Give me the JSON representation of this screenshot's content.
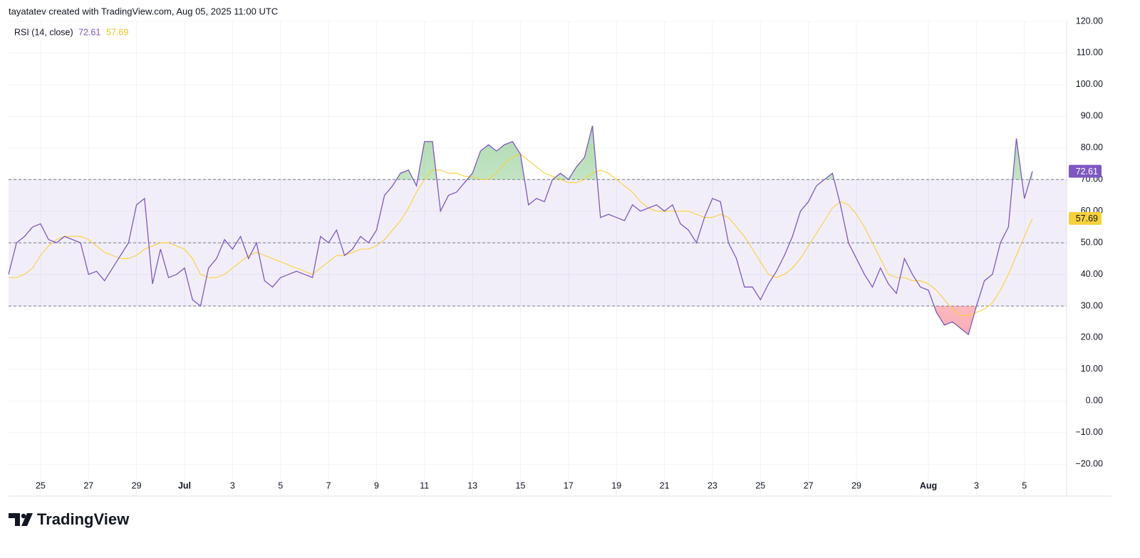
{
  "header": "tayatatev created with TradingView.com, Aug 05, 2025 11:00 UTC",
  "logo": "TradingView",
  "chart_data": {
    "type": "line",
    "indicator": "RSI (14, close)",
    "categories": [
      null,
      null,
      null,
      null,
      "25",
      null,
      null,
      null,
      null,
      null,
      "27",
      null,
      null,
      null,
      null,
      null,
      "29",
      null,
      null,
      null,
      null,
      null,
      "Jul",
      null,
      null,
      null,
      null,
      null,
      "3",
      null,
      null,
      null,
      null,
      null,
      "5",
      null,
      null,
      null,
      null,
      null,
      "7",
      null,
      null,
      null,
      null,
      null,
      "9",
      null,
      null,
      null,
      null,
      null,
      "11",
      null,
      null,
      null,
      null,
      null,
      "13",
      null,
      null,
      null,
      null,
      null,
      "15",
      null,
      null,
      null,
      null,
      null,
      "17",
      null,
      null,
      null,
      null,
      null,
      "19",
      null,
      null,
      null,
      null,
      null,
      "21",
      null,
      null,
      null,
      null,
      null,
      "23",
      null,
      null,
      null,
      null,
      null,
      "25",
      null,
      null,
      null,
      null,
      null,
      "27",
      null,
      null,
      null,
      null,
      null,
      "29",
      null,
      null,
      null,
      null,
      null,
      null,
      null,
      null,
      "Aug",
      null,
      null,
      null,
      null,
      null,
      "3",
      null,
      null,
      null,
      null,
      null,
      "5",
      null
    ],
    "series": [
      {
        "name": "RSI (14, close)",
        "color": "#7e57c2",
        "values": [
          40,
          50,
          52,
          55,
          56,
          51,
          50,
          52,
          51,
          50,
          40,
          41,
          38,
          42,
          46,
          50,
          62,
          64,
          37,
          48,
          39,
          40,
          42,
          32,
          30,
          42,
          45,
          51,
          48,
          52,
          45,
          50,
          38,
          36,
          39,
          40,
          41,
          40,
          39,
          52,
          50,
          54,
          46,
          48,
          52,
          50,
          54,
          65,
          68,
          72,
          73,
          68,
          82,
          82,
          60,
          65,
          66,
          69,
          72,
          79,
          81,
          79,
          81,
          82,
          78,
          62,
          64,
          63,
          70,
          72,
          70,
          74,
          77,
          87,
          58,
          59,
          58,
          57,
          62,
          60,
          61,
          62,
          60,
          62,
          56,
          54,
          50,
          58,
          64,
          63,
          50,
          45,
          36,
          36,
          32,
          37,
          41,
          46,
          52,
          60,
          63,
          68,
          70,
          72,
          62,
          50,
          45,
          40,
          36,
          42,
          37,
          34,
          45,
          40,
          36,
          35,
          28,
          24,
          25,
          23,
          21,
          30,
          38,
          40,
          50,
          55,
          83,
          64,
          72.61
        ]
      },
      {
        "color": "#f7d13c",
        "values": [
          39,
          39,
          40,
          42,
          46,
          49,
          51,
          52,
          52,
          52,
          51,
          49,
          47,
          46,
          45,
          45,
          46,
          48,
          49,
          50,
          50,
          49,
          48,
          45,
          40,
          39,
          39,
          40,
          42,
          44,
          46,
          47,
          46,
          45,
          44,
          43,
          42,
          41,
          40,
          42,
          44,
          46,
          46,
          47,
          48,
          48,
          49,
          51,
          54,
          57,
          61,
          66,
          70,
          73,
          73,
          72,
          72,
          71,
          71,
          70,
          70,
          72,
          75,
          77,
          78,
          76,
          74,
          72,
          71,
          70,
          69,
          69,
          70,
          72,
          73,
          72,
          70,
          68,
          66,
          63,
          61,
          60,
          60,
          60,
          60,
          60,
          59,
          58,
          58,
          59,
          58,
          55,
          52,
          48,
          44,
          40,
          39,
          40,
          42,
          45,
          49,
          53,
          57,
          61,
          63,
          62,
          59,
          55,
          50,
          45,
          40,
          39,
          39,
          38,
          38,
          37,
          35,
          32,
          29,
          27,
          27,
          28,
          29,
          31,
          35,
          40,
          46,
          52,
          57.69
        ]
      }
    ],
    "bands": {
      "upper": 70,
      "middle": 50,
      "lower": 30
    },
    "ylim": [
      -24,
      120
    ],
    "yticks": [
      {
        "value": 120,
        "label": "120.00"
      },
      {
        "value": 110,
        "label": "110.00"
      },
      {
        "value": 100,
        "label": "100.00"
      },
      {
        "value": 90,
        "label": "90.00"
      },
      {
        "value": 80,
        "label": "80.00"
      },
      {
        "value": 70,
        "label": "70.00"
      },
      {
        "value": 60,
        "label": "60.00"
      },
      {
        "value": 50,
        "label": "50.00"
      },
      {
        "value": 40,
        "label": "40.00"
      },
      {
        "value": 30,
        "label": "30.00"
      },
      {
        "value": 20,
        "label": "20.00"
      },
      {
        "value": 10,
        "label": "10.00"
      },
      {
        "value": 0,
        "label": "0.00"
      },
      {
        "value": -10,
        "label": "−10.00"
      },
      {
        "value": -20,
        "label": "−20.00"
      }
    ],
    "grid": true
  }
}
